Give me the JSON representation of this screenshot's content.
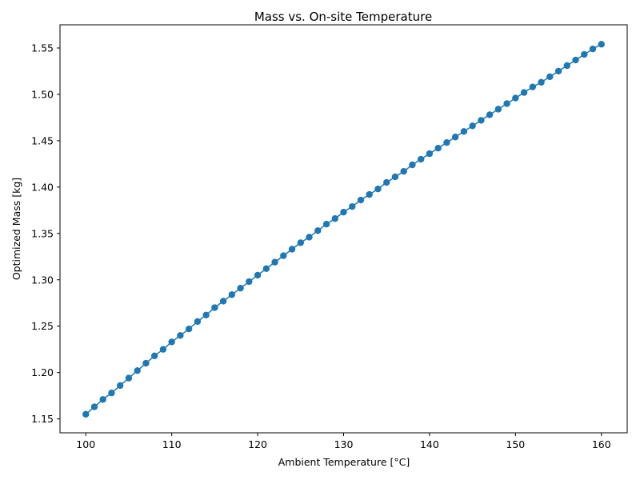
{
  "chart_data": {
    "type": "line",
    "title": "Mass vs. On-site Temperature",
    "xlabel": "Ambient Temperature [°C]",
    "ylabel": "Optimized Mass [kg]",
    "xlim": [
      97,
      163
    ],
    "ylim": [
      1.135,
      1.575
    ],
    "xticks": [
      100,
      110,
      120,
      130,
      140,
      150,
      160
    ],
    "yticks": [
      1.15,
      1.2,
      1.25,
      1.3,
      1.35,
      1.4,
      1.45,
      1.5,
      1.55
    ],
    "ytick_labels": [
      "1.15",
      "1.20",
      "1.25",
      "1.30",
      "1.35",
      "1.40",
      "1.45",
      "1.50",
      "1.55"
    ],
    "grid": false,
    "marker": "circle",
    "series": [
      {
        "color": "#1f77b4",
        "x_start": 100,
        "x_step": 1,
        "x_end": 160,
        "y": [
          1.155,
          1.163,
          1.171,
          1.178,
          1.186,
          1.194,
          1.202,
          1.21,
          1.218,
          1.225,
          1.233,
          1.24,
          1.247,
          1.255,
          1.262,
          1.27,
          1.277,
          1.284,
          1.291,
          1.298,
          1.305,
          1.312,
          1.319,
          1.326,
          1.333,
          1.34,
          1.346,
          1.353,
          1.36,
          1.366,
          1.373,
          1.379,
          1.386,
          1.392,
          1.398,
          1.405,
          1.411,
          1.417,
          1.424,
          1.43,
          1.436,
          1.442,
          1.448,
          1.454,
          1.46,
          1.466,
          1.472,
          1.478,
          1.484,
          1.49,
          1.496,
          1.502,
          1.508,
          1.513,
          1.519,
          1.525,
          1.531,
          1.537,
          1.543,
          1.549,
          1.554
        ]
      }
    ]
  }
}
